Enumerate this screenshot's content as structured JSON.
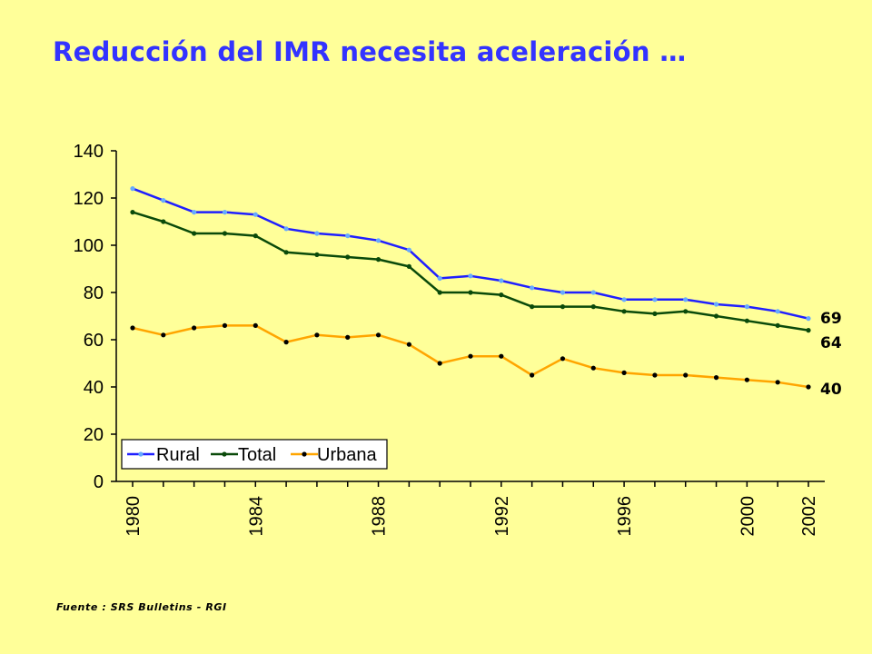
{
  "title": "Reducción del IMR necesita aceleración …",
  "source": "Fuente : SRS Bulletins - RGI",
  "chart_data": {
    "type": "line",
    "x": [
      1980,
      1981,
      1982,
      1983,
      1984,
      1985,
      1986,
      1987,
      1988,
      1989,
      1990,
      1991,
      1992,
      1993,
      1994,
      1995,
      1996,
      1997,
      1998,
      1999,
      2000,
      2001,
      2002
    ],
    "x_tick_labels": [
      "1980",
      "1984",
      "1988",
      "1992",
      "1996",
      "2000",
      "2002"
    ],
    "ylim": [
      0,
      140
    ],
    "y_ticks": [
      0,
      20,
      40,
      60,
      80,
      100,
      120,
      140
    ],
    "grid": false,
    "legend_position": "bottom-left",
    "series": [
      {
        "name": "Rural",
        "color": "#1f1fff",
        "marker_color": "#66aaff",
        "values": [
          124,
          119,
          114,
          114,
          113,
          107,
          105,
          104,
          102,
          98,
          86,
          87,
          85,
          82,
          80,
          80,
          77,
          77,
          77,
          75,
          74,
          72,
          69
        ]
      },
      {
        "name": "Total",
        "color": "#0a4a0a",
        "marker_color": "#0a4a0a",
        "values": [
          114,
          110,
          105,
          105,
          104,
          97,
          96,
          95,
          94,
          91,
          80,
          80,
          79,
          74,
          74,
          74,
          72,
          71,
          72,
          70,
          68,
          66,
          64
        ]
      },
      {
        "name": "Urbana",
        "color": "#ffa500",
        "marker_color": "#000000",
        "values": [
          65,
          62,
          65,
          66,
          66,
          59,
          62,
          61,
          62,
          58,
          50,
          53,
          53,
          45,
          52,
          48,
          46,
          45,
          45,
          44,
          43,
          42,
          40
        ]
      }
    ],
    "end_labels": [
      "69",
      "64",
      "40"
    ]
  }
}
